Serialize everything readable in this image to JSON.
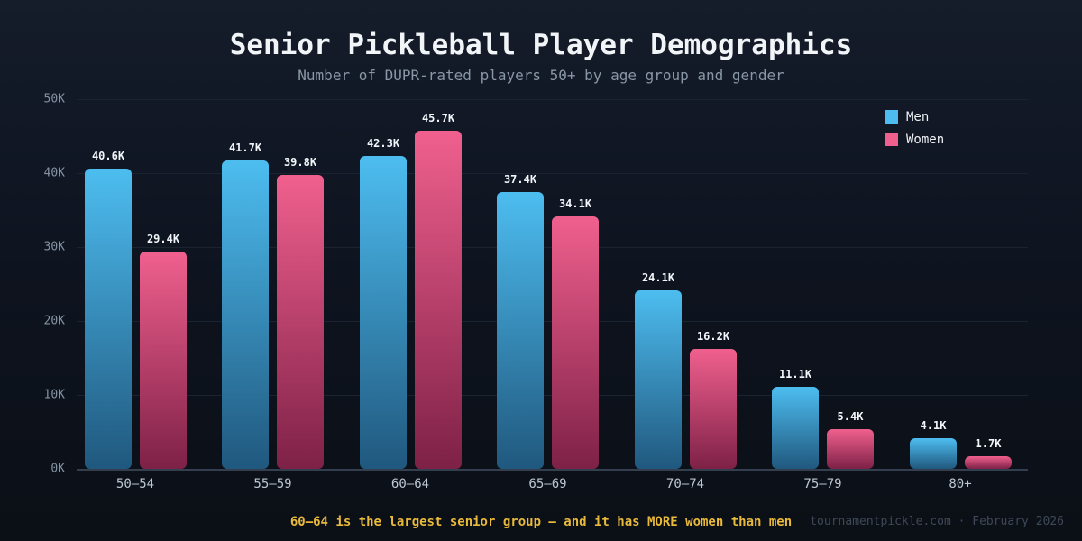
{
  "title": "Senior Pickleball Player Demographics",
  "subtitle": "Number of DUPR-rated players 50+ by age group and gender",
  "footer": {
    "note": "60–64 is the largest senior group — and it has MORE women than men",
    "attribution": "tournamentpickle.com · February 2026"
  },
  "colors": {
    "background": "#0e1420",
    "title": "#f2f5f8",
    "subtitle": "#8a97a6",
    "grid": "#1b2330",
    "axis": "#333e4e",
    "ytick": "#8492a2",
    "xlabel": "#bdc7d2",
    "value_label": "#f2f6fa",
    "note": "#e8b93b",
    "attribution": "#3e4856",
    "men_blue": "#4dbdf0",
    "women_pink": "#f0608e"
  },
  "chart_data": {
    "type": "bar",
    "title": "Senior Pickleball Player Demographics",
    "subtitle": "Number of DUPR-rated players 50+ by age group and gender",
    "categories": [
      "50–54",
      "55–59",
      "60–64",
      "65–69",
      "70–74",
      "75–79",
      "80+"
    ],
    "series": [
      {
        "name": "Men",
        "legend_color": "#4dbdf0",
        "gradient_top": "#4dbdf0",
        "gradient_bottom": "#20587e",
        "values": [
          40.6,
          41.7,
          42.3,
          37.4,
          24.1,
          11.1,
          4.1
        ],
        "labels": [
          "40.6K",
          "41.7K",
          "42.3K",
          "37.4K",
          "24.1K",
          "11.1K",
          "4.1K"
        ]
      },
      {
        "name": "Women",
        "legend_color": "#f0608e",
        "gradient_top": "#f0608e",
        "gradient_bottom": "#7e2147",
        "values": [
          29.4,
          39.8,
          45.7,
          34.1,
          16.2,
          5.4,
          1.7
        ],
        "labels": [
          "29.4K",
          "39.8K",
          "45.7K",
          "34.1K",
          "16.2K",
          "5.4K",
          "1.7K"
        ]
      }
    ],
    "value_suffix": "K",
    "xlabel": "",
    "ylabel": "",
    "ylim": [
      0,
      50
    ],
    "yticks": [
      "0K",
      "10K",
      "20K",
      "30K",
      "40K",
      "50K"
    ],
    "grid": "horizontal",
    "legend_position": "top-right"
  }
}
